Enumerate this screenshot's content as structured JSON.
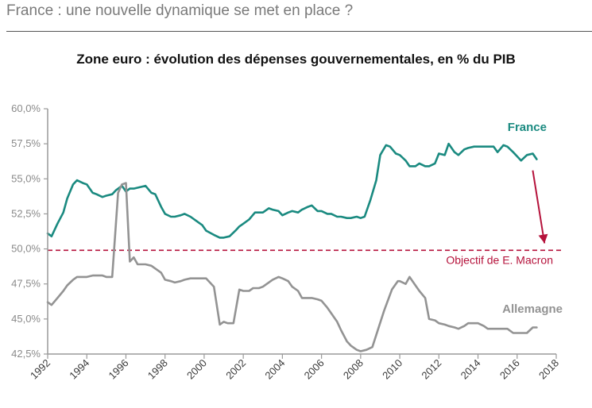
{
  "header": {
    "title": "France : une nouvelle dynamique se met en place ?"
  },
  "chart_data": {
    "type": "line",
    "title": "Zone euro : évolution des dépenses gouvernementales, en % du PIB",
    "xlabel": "",
    "ylabel": "",
    "xlim": [
      1992,
      2018
    ],
    "ylim": [
      42.5,
      60.0
    ],
    "y_ticks": [
      60.0,
      57.5,
      55.0,
      52.5,
      50.0,
      47.5,
      45.0,
      42.5
    ],
    "y_tick_labels": [
      "60,0%",
      "57,5%",
      "55,0%",
      "52,5%",
      "50,0%",
      "47,5%",
      "45,0%",
      "42,5%"
    ],
    "x_ticks": [
      1992,
      1994,
      1996,
      1998,
      2000,
      2002,
      2004,
      2006,
      2008,
      2010,
      2012,
      2014,
      2016,
      2018
    ],
    "x_tick_labels": [
      "1992",
      "1994",
      "1996",
      "1998",
      "2000",
      "2002",
      "2004",
      "2006",
      "2008",
      "2010",
      "2012",
      "2014",
      "2016",
      "2018"
    ],
    "grid": false,
    "series": [
      {
        "name": "France",
        "label": "France",
        "color": "#1a8a80",
        "x": [
          1992.0,
          1992.2,
          1992.5,
          1992.8,
          1993.0,
          1993.3,
          1993.5,
          1993.8,
          1994.0,
          1994.3,
          1994.5,
          1994.8,
          1995.0,
          1995.3,
          1995.5,
          1995.8,
          1996.0,
          1996.2,
          1996.4,
          1996.7,
          1997.0,
          1997.3,
          1997.5,
          1997.8,
          1998.0,
          1998.3,
          1998.5,
          1998.8,
          1999.0,
          1999.3,
          1999.6,
          1999.9,
          2000.1,
          2000.5,
          2000.8,
          2001.0,
          2001.3,
          2001.6,
          2001.8,
          2002.0,
          2002.3,
          2002.6,
          2003.0,
          2003.3,
          2003.5,
          2003.8,
          2004.0,
          2004.3,
          2004.5,
          2004.8,
          2005.0,
          2005.3,
          2005.5,
          2005.8,
          2006.0,
          2006.3,
          2006.5,
          2006.8,
          2007.0,
          2007.3,
          2007.5,
          2007.8,
          2008.0,
          2008.2,
          2008.5,
          2008.8,
          2009.0,
          2009.3,
          2009.5,
          2009.8,
          2010.0,
          2010.3,
          2010.5,
          2010.8,
          2011.0,
          2011.3,
          2011.5,
          2011.8,
          2012.0,
          2012.3,
          2012.5,
          2012.8,
          2013.0,
          2013.3,
          2013.5,
          2013.8,
          2014.0,
          2014.3,
          2014.5,
          2014.8,
          2015.0,
          2015.3,
          2015.5,
          2015.8,
          2016.0,
          2016.2,
          2016.5,
          2016.8,
          2017.0
        ],
        "values": [
          51.1,
          50.9,
          51.8,
          52.6,
          53.6,
          54.6,
          54.9,
          54.7,
          54.6,
          54.0,
          53.9,
          53.7,
          53.8,
          53.9,
          54.2,
          54.5,
          54.1,
          54.3,
          54.3,
          54.4,
          54.5,
          54.0,
          53.9,
          53.0,
          52.5,
          52.3,
          52.3,
          52.4,
          52.5,
          52.3,
          52.0,
          51.7,
          51.3,
          51.0,
          50.8,
          50.8,
          50.9,
          51.3,
          51.6,
          51.8,
          52.1,
          52.6,
          52.6,
          52.9,
          52.8,
          52.7,
          52.4,
          52.6,
          52.7,
          52.6,
          52.8,
          53.0,
          53.1,
          52.7,
          52.7,
          52.5,
          52.5,
          52.3,
          52.3,
          52.2,
          52.2,
          52.3,
          52.2,
          52.3,
          53.5,
          54.9,
          56.7,
          57.4,
          57.3,
          56.8,
          56.7,
          56.3,
          55.9,
          55.9,
          56.1,
          55.9,
          55.9,
          56.1,
          56.8,
          56.7,
          57.5,
          56.9,
          56.7,
          57.1,
          57.2,
          57.3,
          57.3,
          57.3,
          57.3,
          57.3,
          56.9,
          57.4,
          57.3,
          56.9,
          56.6,
          56.3,
          56.7,
          56.8,
          56.4
        ]
      },
      {
        "name": "Allemagne",
        "label": "Allemagne",
        "color": "#939393",
        "x": [
          1992.0,
          1992.2,
          1992.5,
          1992.8,
          1993.0,
          1993.3,
          1993.5,
          1993.8,
          1994.0,
          1994.3,
          1994.5,
          1994.8,
          1995.0,
          1995.3,
          1995.6,
          1995.8,
          1996.0,
          1996.2,
          1996.4,
          1996.6,
          1996.8,
          1997.0,
          1997.3,
          1997.5,
          1997.8,
          1998.0,
          1998.3,
          1998.5,
          1998.8,
          1999.0,
          1999.3,
          1999.6,
          1999.9,
          2000.1,
          2000.5,
          2000.8,
          2001.0,
          2001.2,
          2001.5,
          2001.8,
          2002.0,
          2002.3,
          2002.5,
          2002.8,
          2003.0,
          2003.3,
          2003.5,
          2003.8,
          2004.0,
          2004.3,
          2004.5,
          2004.8,
          2005.0,
          2005.3,
          2005.5,
          2005.8,
          2006.0,
          2006.3,
          2006.5,
          2006.8,
          2007.0,
          2007.3,
          2007.5,
          2007.8,
          2008.0,
          2008.3,
          2008.6,
          2008.9,
          2009.2,
          2009.6,
          2009.9,
          2010.0,
          2010.3,
          2010.5,
          2010.8,
          2011.0,
          2011.3,
          2011.5,
          2011.8,
          2012.0,
          2012.3,
          2012.5,
          2012.8,
          2013.0,
          2013.3,
          2013.5,
          2013.8,
          2014.0,
          2014.3,
          2014.5,
          2014.8,
          2015.0,
          2015.3,
          2015.5,
          2015.8,
          2016.0,
          2016.3,
          2016.5,
          2016.8,
          2017.0
        ],
        "values": [
          46.2,
          46.0,
          46.5,
          47.0,
          47.4,
          47.8,
          48.0,
          48.0,
          48.0,
          48.1,
          48.1,
          48.1,
          48.0,
          48.0,
          54.0,
          54.6,
          54.7,
          49.1,
          49.4,
          48.9,
          48.9,
          48.9,
          48.8,
          48.6,
          48.3,
          47.8,
          47.7,
          47.6,
          47.7,
          47.8,
          47.9,
          47.9,
          47.9,
          47.9,
          47.3,
          44.6,
          44.8,
          44.7,
          44.7,
          47.1,
          47.0,
          47.0,
          47.2,
          47.2,
          47.3,
          47.6,
          47.8,
          48.0,
          47.9,
          47.7,
          47.3,
          47.0,
          46.5,
          46.5,
          46.5,
          46.4,
          46.3,
          45.8,
          45.4,
          44.8,
          44.2,
          43.4,
          43.1,
          42.8,
          42.7,
          42.8,
          43.0,
          44.3,
          45.6,
          47.1,
          47.7,
          47.7,
          47.5,
          48.0,
          47.4,
          47.0,
          46.5,
          45.0,
          44.9,
          44.7,
          44.6,
          44.5,
          44.4,
          44.3,
          44.5,
          44.7,
          44.7,
          44.7,
          44.5,
          44.3,
          44.3,
          44.3,
          44.3,
          44.3,
          44.0,
          44.0,
          44.0,
          44.0,
          44.4,
          44.4
        ]
      }
    ],
    "reference_line": {
      "value": 49.9,
      "label": "Objectif de E. Macron",
      "color": "#b5123b",
      "style": "dashed"
    },
    "arrow": {
      "from": [
        2016.8,
        55.6
      ],
      "to": [
        2017.4,
        50.4
      ],
      "color": "#b5123b"
    }
  }
}
